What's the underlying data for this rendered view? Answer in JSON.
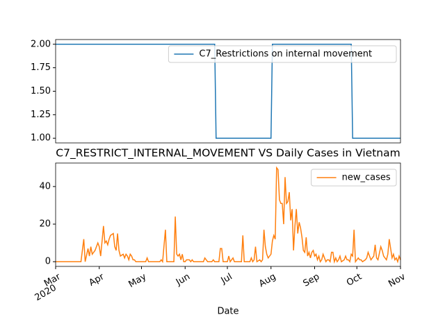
{
  "chart_data": [
    {
      "type": "line",
      "series": [
        {
          "name": "C7_Restrictions on internal movement",
          "color": "#1f77b4",
          "x": [
            0,
            113,
            114,
            153,
            154,
            210,
            211,
            245
          ],
          "values": [
            2,
            2,
            1,
            1,
            2,
            2,
            1,
            1
          ]
        }
      ],
      "xlim": [
        0,
        245
      ],
      "ylim": [
        0.95,
        2.05
      ],
      "yticks": [
        {
          "value": 1.0,
          "label": "1.00"
        },
        {
          "value": 1.25,
          "label": "1.25"
        },
        {
          "value": 1.5,
          "label": "1.50"
        },
        {
          "value": 1.75,
          "label": "1.75"
        },
        {
          "value": 2.0,
          "label": "2.00"
        }
      ],
      "legend": "upper right"
    },
    {
      "type": "line",
      "title": "C7_RESTRICT_INTERNAL_MOVEMENT VS Daily Cases in Vietnam",
      "xlabel": "Date",
      "x_year_label": "2020",
      "series": [
        {
          "name": "new_cases",
          "color": "#ff7f0e",
          "x": [
            0,
            18,
            20,
            21,
            23,
            24,
            25,
            26,
            28,
            30,
            31,
            32,
            34,
            35,
            36,
            37,
            38,
            39,
            41,
            42,
            43,
            44,
            45,
            46,
            48,
            49,
            50,
            51,
            52,
            53,
            54,
            55,
            56,
            57,
            64,
            65,
            66,
            74,
            75,
            76,
            78,
            79,
            84,
            85,
            86,
            87,
            88,
            89,
            90,
            91,
            92,
            93,
            95,
            96,
            97,
            98,
            105,
            106,
            107,
            108,
            111,
            112,
            113,
            116,
            117,
            118,
            119,
            122,
            123,
            124,
            125,
            126,
            127,
            132,
            133,
            134,
            138,
            139,
            140,
            141,
            142,
            143,
            145,
            146,
            147,
            148,
            149,
            150,
            151,
            153,
            154,
            155,
            156,
            157,
            158,
            159,
            160,
            161,
            162,
            163,
            164,
            165,
            166,
            167,
            168,
            169,
            170,
            171,
            172,
            173,
            174,
            175,
            176,
            177,
            178,
            179,
            180,
            181,
            182,
            183,
            184,
            185,
            186,
            187,
            188,
            189,
            190,
            191,
            192,
            193,
            194,
            195,
            196,
            197,
            198,
            199,
            200,
            201,
            202,
            203,
            205,
            206,
            207,
            208,
            209,
            210,
            211,
            212,
            213,
            214,
            215,
            216,
            217,
            218,
            220,
            221,
            222,
            223,
            224,
            226,
            227,
            228,
            229,
            231,
            232,
            233,
            234,
            235,
            236,
            237,
            238,
            239,
            240,
            241,
            242,
            243,
            244,
            245
          ],
          "values": [
            0,
            0,
            12,
            0,
            7,
            3,
            8,
            4,
            6,
            10,
            8,
            3,
            19,
            10,
            11,
            9,
            12,
            14,
            15,
            8,
            6,
            15,
            6,
            3,
            4,
            2,
            4,
            3,
            1,
            4,
            3,
            1,
            1,
            0,
            0,
            2,
            0,
            0,
            1,
            0,
            17,
            0,
            0,
            24,
            4,
            3,
            4,
            1,
            4,
            0,
            0,
            1,
            1,
            0,
            1,
            0,
            0,
            2,
            1,
            0,
            0,
            1,
            0,
            0,
            7,
            7,
            0,
            0,
            3,
            0,
            1,
            2,
            0,
            0,
            14,
            0,
            0,
            2,
            0,
            1,
            8,
            0,
            1,
            0,
            1,
            17,
            8,
            4,
            2,
            4,
            11,
            14,
            12,
            50,
            49,
            33,
            31,
            31,
            20,
            45,
            31,
            32,
            37,
            22,
            28,
            6,
            19,
            28,
            15,
            21,
            18,
            13,
            6,
            5,
            13,
            3,
            5,
            2,
            5,
            6,
            3,
            4,
            1,
            3,
            0,
            1,
            4,
            2,
            0,
            1,
            1,
            0,
            5,
            5,
            0,
            2,
            0,
            1,
            3,
            0,
            1,
            3,
            1,
            1,
            0,
            4,
            3,
            17,
            0,
            1,
            2,
            1,
            1,
            0,
            1,
            2,
            5,
            3,
            1,
            3,
            9,
            2,
            1,
            8,
            6,
            3,
            2,
            1,
            4,
            12,
            7,
            2,
            4,
            1,
            2,
            0,
            3,
            1
          ]
        }
      ],
      "xlim": [
        0,
        245
      ],
      "ylim": [
        -2.5,
        52.5
      ],
      "xticks": [
        {
          "value": 0,
          "label": "Mar"
        },
        {
          "value": 31,
          "label": "Apr"
        },
        {
          "value": 61,
          "label": "May"
        },
        {
          "value": 92,
          "label": "Jun"
        },
        {
          "value": 122,
          "label": "Jul"
        },
        {
          "value": 153,
          "label": "Aug"
        },
        {
          "value": 184,
          "label": "Sep"
        },
        {
          "value": 214,
          "label": "Oct"
        },
        {
          "value": 245,
          "label": "Nov"
        }
      ],
      "yticks": [
        0,
        20,
        40
      ],
      "legend": "upper right"
    }
  ]
}
